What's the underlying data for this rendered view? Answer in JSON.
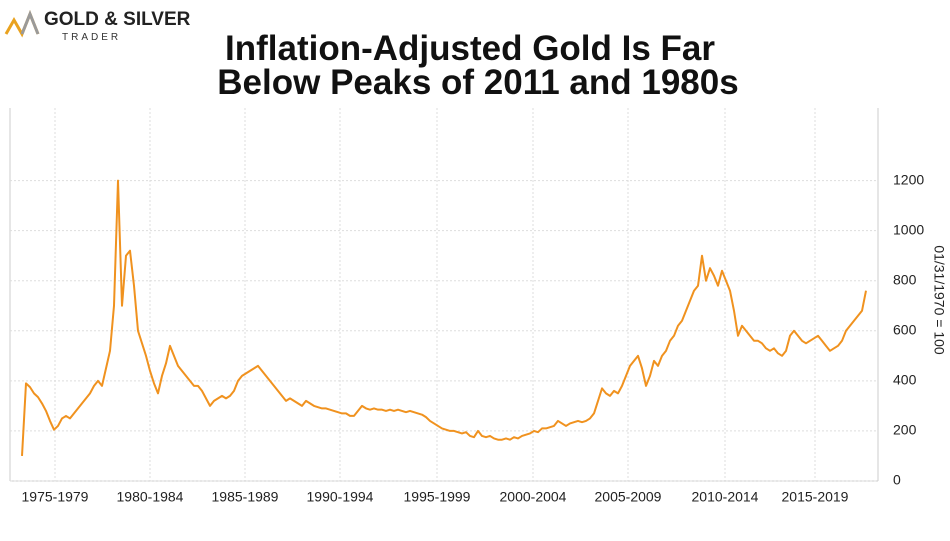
{
  "chart_data": {
    "type": "line",
    "logo": {
      "name": "GOLD & SILVER",
      "sub": "TRADER"
    },
    "title": [
      "Inflation-Adjusted Gold Is Far",
      "Below Peaks of 2011 and 1980s"
    ],
    "y_label": "01/31/1970 = 100",
    "color": "#f0921f",
    "grid": true,
    "xlim": [
      1974.4,
      2017.8
    ],
    "xticks": [
      {
        "value": 1976.65,
        "label": "1975-1979"
      },
      {
        "value": 1981.4,
        "label": "1980-1984"
      },
      {
        "value": 1986.15,
        "label": "1985-1989"
      },
      {
        "value": 1990.9,
        "label": "1990-1994"
      },
      {
        "value": 1995.75,
        "label": "1995-1999"
      },
      {
        "value": 2000.55,
        "label": "2000-2004"
      },
      {
        "value": 2005.3,
        "label": "2005-2009"
      },
      {
        "value": 2010.15,
        "label": "2010-2014"
      },
      {
        "value": 2014.65,
        "label": "2015-2019"
      }
    ],
    "ylim": [
      0,
      1490
    ],
    "yticks": [
      0,
      200,
      400,
      600,
      800,
      1000,
      1200
    ],
    "x": [
      1975,
      1975.2,
      1975.4,
      1975.6,
      1975.8,
      1976,
      1976.2,
      1976.4,
      1976.6,
      1976.8,
      1977,
      1977.2,
      1977.4,
      1977.6,
      1977.8,
      1978,
      1978.2,
      1978.4,
      1978.6,
      1978.8,
      1979,
      1979.2,
      1979.4,
      1979.6,
      1979.8,
      1980,
      1980.2,
      1980.4,
      1980.6,
      1980.8,
      1981,
      1981.2,
      1981.4,
      1981.6,
      1981.8,
      1982,
      1982.2,
      1982.4,
      1982.6,
      1982.8,
      1983,
      1983.2,
      1983.4,
      1983.6,
      1983.8,
      1984,
      1984.2,
      1984.4,
      1984.6,
      1984.8,
      1985,
      1985.2,
      1985.4,
      1985.6,
      1985.8,
      1986,
      1986.2,
      1986.4,
      1986.6,
      1986.8,
      1987,
      1987.2,
      1987.4,
      1987.6,
      1987.8,
      1988,
      1988.2,
      1988.4,
      1988.6,
      1988.8,
      1989,
      1989.2,
      1989.4,
      1989.6,
      1989.8,
      1990,
      1990.2,
      1990.4,
      1990.6,
      1990.8,
      1991,
      1991.2,
      1991.4,
      1991.6,
      1991.8,
      1992,
      1992.2,
      1992.4,
      1992.6,
      1992.8,
      1993,
      1993.2,
      1993.4,
      1993.6,
      1993.8,
      1994,
      1994.2,
      1994.4,
      1994.6,
      1994.8,
      1995,
      1995.2,
      1995.4,
      1995.6,
      1995.8,
      1996,
      1996.2,
      1996.4,
      1996.6,
      1996.8,
      1997,
      1997.2,
      1997.4,
      1997.6,
      1997.8,
      1998,
      1998.2,
      1998.4,
      1998.6,
      1998.8,
      1999,
      1999.2,
      1999.4,
      1999.6,
      1999.8,
      2000,
      2000.2,
      2000.4,
      2000.6,
      2000.8,
      2001,
      2001.2,
      2001.4,
      2001.6,
      2001.8,
      2002,
      2002.2,
      2002.4,
      2002.6,
      2002.8,
      2003,
      2003.2,
      2003.4,
      2003.6,
      2003.8,
      2004,
      2004.2,
      2004.4,
      2004.6,
      2004.8,
      2005,
      2005.2,
      2005.4,
      2005.6,
      2005.8,
      2006,
      2006.2,
      2006.4,
      2006.6,
      2006.8,
      2007,
      2007.2,
      2007.4,
      2007.6,
      2007.8,
      2008,
      2008.2,
      2008.4,
      2008.6,
      2008.8,
      2009,
      2009.2,
      2009.4,
      2009.6,
      2009.8,
      2010,
      2010.2,
      2010.4,
      2010.6,
      2010.8,
      2011,
      2011.2,
      2011.4,
      2011.6,
      2011.8,
      2012,
      2012.2,
      2012.4,
      2012.6,
      2012.8,
      2013,
      2013.2,
      2013.4,
      2013.6,
      2013.8,
      2014,
      2014.2,
      2014.4,
      2014.6,
      2014.8,
      2015,
      2015.2,
      2015.4,
      2015.6,
      2015.8,
      2016,
      2016.2,
      2016.4,
      2016.6,
      2016.8,
      2017,
      2017.2
    ],
    "values": [
      100,
      390,
      375,
      350,
      335,
      310,
      280,
      240,
      205,
      220,
      250,
      260,
      250,
      270,
      290,
      310,
      330,
      350,
      380,
      400,
      380,
      450,
      520,
      700,
      1200,
      700,
      900,
      920,
      780,
      600,
      550,
      500,
      440,
      390,
      350,
      420,
      470,
      540,
      500,
      460,
      440,
      420,
      400,
      380,
      380,
      360,
      330,
      300,
      320,
      330,
      340,
      330,
      340,
      360,
      400,
      420,
      430,
      440,
      450,
      460,
      440,
      420,
      400,
      380,
      360,
      340,
      320,
      330,
      320,
      310,
      300,
      320,
      310,
      300,
      295,
      290,
      290,
      285,
      280,
      275,
      270,
      270,
      260,
      260,
      280,
      300,
      290,
      285,
      290,
      285,
      285,
      280,
      285,
      280,
      285,
      280,
      275,
      280,
      275,
      270,
      265,
      255,
      240,
      230,
      220,
      210,
      205,
      200,
      200,
      195,
      190,
      195,
      180,
      175,
      200,
      180,
      175,
      180,
      170,
      165,
      165,
      170,
      165,
      175,
      170,
      180,
      185,
      190,
      200,
      195,
      210,
      210,
      215,
      220,
      240,
      230,
      220,
      230,
      235,
      240,
      235,
      240,
      250,
      270,
      320,
      370,
      350,
      340,
      360,
      350,
      380,
      420,
      460,
      480,
      500,
      450,
      380,
      420,
      480,
      460,
      500,
      520,
      560,
      580,
      620,
      640,
      680,
      720,
      760,
      780,
      900,
      800,
      850,
      820,
      780,
      840,
      800,
      760,
      680,
      580,
      620,
      600,
      580,
      560,
      560,
      550,
      530,
      520,
      530,
      510,
      500,
      520,
      580,
      600,
      580,
      560,
      550,
      560,
      570,
      580,
      560,
      540,
      520,
      530,
      540,
      560,
      600,
      620,
      640,
      660,
      680,
      760
    ]
  }
}
